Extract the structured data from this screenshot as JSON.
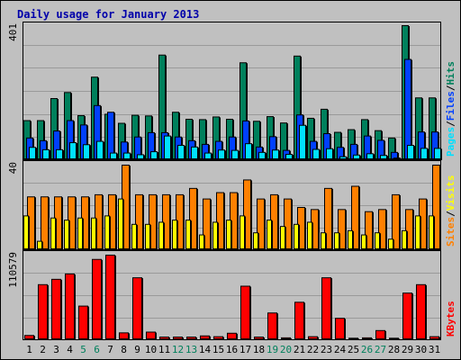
{
  "title": "Daily usage for January 2013",
  "colors": {
    "hits": "#00805c",
    "files": "#0040ff",
    "pages": "#00e0ff",
    "visits": "#ff8000",
    "sites": "#ffff00",
    "kbytes": "#ff0000",
    "weekend": "#00805c",
    "weekday": "#000000"
  },
  "chart_data": [
    {
      "type": "bar",
      "name": "hits-files-pages",
      "ymax_label": "401",
      "legend": {
        "pages": "Pages",
        "files": "Files",
        "hits": "Hits",
        "sep": "/"
      },
      "categories": [
        "1",
        "2",
        "3",
        "4",
        "5",
        "6",
        "7",
        "8",
        "9",
        "10",
        "11",
        "12",
        "13",
        "14",
        "15",
        "16",
        "17",
        "18",
        "19",
        "20",
        "21",
        "22",
        "23",
        "24",
        "25",
        "26",
        "27",
        "28",
        "29",
        "30",
        "31"
      ],
      "series": [
        {
          "name": "Hits",
          "values": [
            117,
            117,
            183,
            201,
            132,
            247,
            136,
            109,
            133,
            131,
            313,
            142,
            121,
            120,
            128,
            121,
            290,
            115,
            129,
            110,
            310,
            124,
            151,
            82,
            90,
            120,
            87,
            65,
            401,
            185,
            185
          ]
        },
        {
          "name": "Files",
          "values": [
            65,
            57,
            86,
            117,
            104,
            162,
            142,
            53,
            68,
            81,
            81,
            68,
            57,
            46,
            55,
            68,
            116,
            38,
            69,
            28,
            134,
            55,
            78,
            37,
            46,
            71,
            58,
            22,
            300,
            83,
            83
          ]
        },
        {
          "name": "Pages",
          "values": [
            37,
            30,
            30,
            51,
            45,
            55,
            20,
            20,
            15,
            24,
            71,
            43,
            38,
            20,
            29,
            28,
            48,
            22,
            29,
            16,
            103,
            31,
            33,
            9,
            14,
            18,
            13,
            5,
            43,
            34,
            34
          ]
        }
      ]
    },
    {
      "type": "bar",
      "name": "visits-sites",
      "ymax_label": "40",
      "legend": {
        "sites": "Sites",
        "visits": "Visits",
        "sep": "/"
      },
      "categories": [
        "1",
        "2",
        "3",
        "4",
        "5",
        "6",
        "7",
        "8",
        "9",
        "10",
        "11",
        "12",
        "13",
        "14",
        "15",
        "16",
        "17",
        "18",
        "19",
        "20",
        "21",
        "22",
        "23",
        "24",
        "25",
        "26",
        "27",
        "28",
        "29",
        "30",
        "31"
      ],
      "series": [
        {
          "name": "Visits",
          "values": [
            25,
            25,
            25,
            25,
            25,
            26,
            26,
            40,
            26,
            26,
            26,
            26,
            29,
            24,
            27,
            27,
            33,
            24,
            26,
            24,
            20,
            19,
            29,
            19,
            30,
            18,
            19,
            26,
            19,
            24,
            40
          ]
        },
        {
          "name": "Sites",
          "values": [
            16,
            4,
            15,
            14,
            15,
            15,
            16,
            24,
            12,
            12,
            13,
            14,
            14,
            7,
            13,
            14,
            16,
            8,
            14,
            11,
            12,
            13,
            8,
            8,
            9,
            7,
            8,
            5,
            9,
            16,
            16
          ]
        }
      ]
    },
    {
      "type": "bar",
      "name": "kbytes",
      "ymax_label": "110579",
      "legend": {
        "kbytes": "KBytes"
      },
      "categories": [
        "1",
        "2",
        "3",
        "4",
        "5",
        "6",
        "7",
        "8",
        "9",
        "10",
        "11",
        "12",
        "13",
        "14",
        "15",
        "16",
        "17",
        "18",
        "19",
        "20",
        "21",
        "22",
        "23",
        "24",
        "25",
        "26",
        "27",
        "28",
        "29",
        "30",
        "31"
      ],
      "series": [
        {
          "name": "KBytes",
          "values": [
            5600,
            72000,
            79000,
            86000,
            44000,
            105000,
            110579,
            9000,
            81000,
            10000,
            3500,
            3500,
            3500,
            5000,
            4000,
            8500,
            70000,
            3500,
            35000,
            2500,
            49000,
            4000,
            81000,
            28000,
            2000,
            2500,
            12000,
            2000,
            61000,
            72000,
            4000
          ]
        }
      ]
    }
  ],
  "xaxis": {
    "labels": [
      "1",
      "2",
      "3",
      "4",
      "5",
      "6",
      "7",
      "8",
      "9",
      "10",
      "11",
      "12",
      "13",
      "14",
      "15",
      "16",
      "17",
      "18",
      "19",
      "20",
      "21",
      "22",
      "23",
      "24",
      "25",
      "26",
      "27",
      "28",
      "29",
      "30",
      "31"
    ],
    "weekends": [
      "5",
      "6",
      "12",
      "13",
      "19",
      "20",
      "26",
      "27"
    ]
  }
}
